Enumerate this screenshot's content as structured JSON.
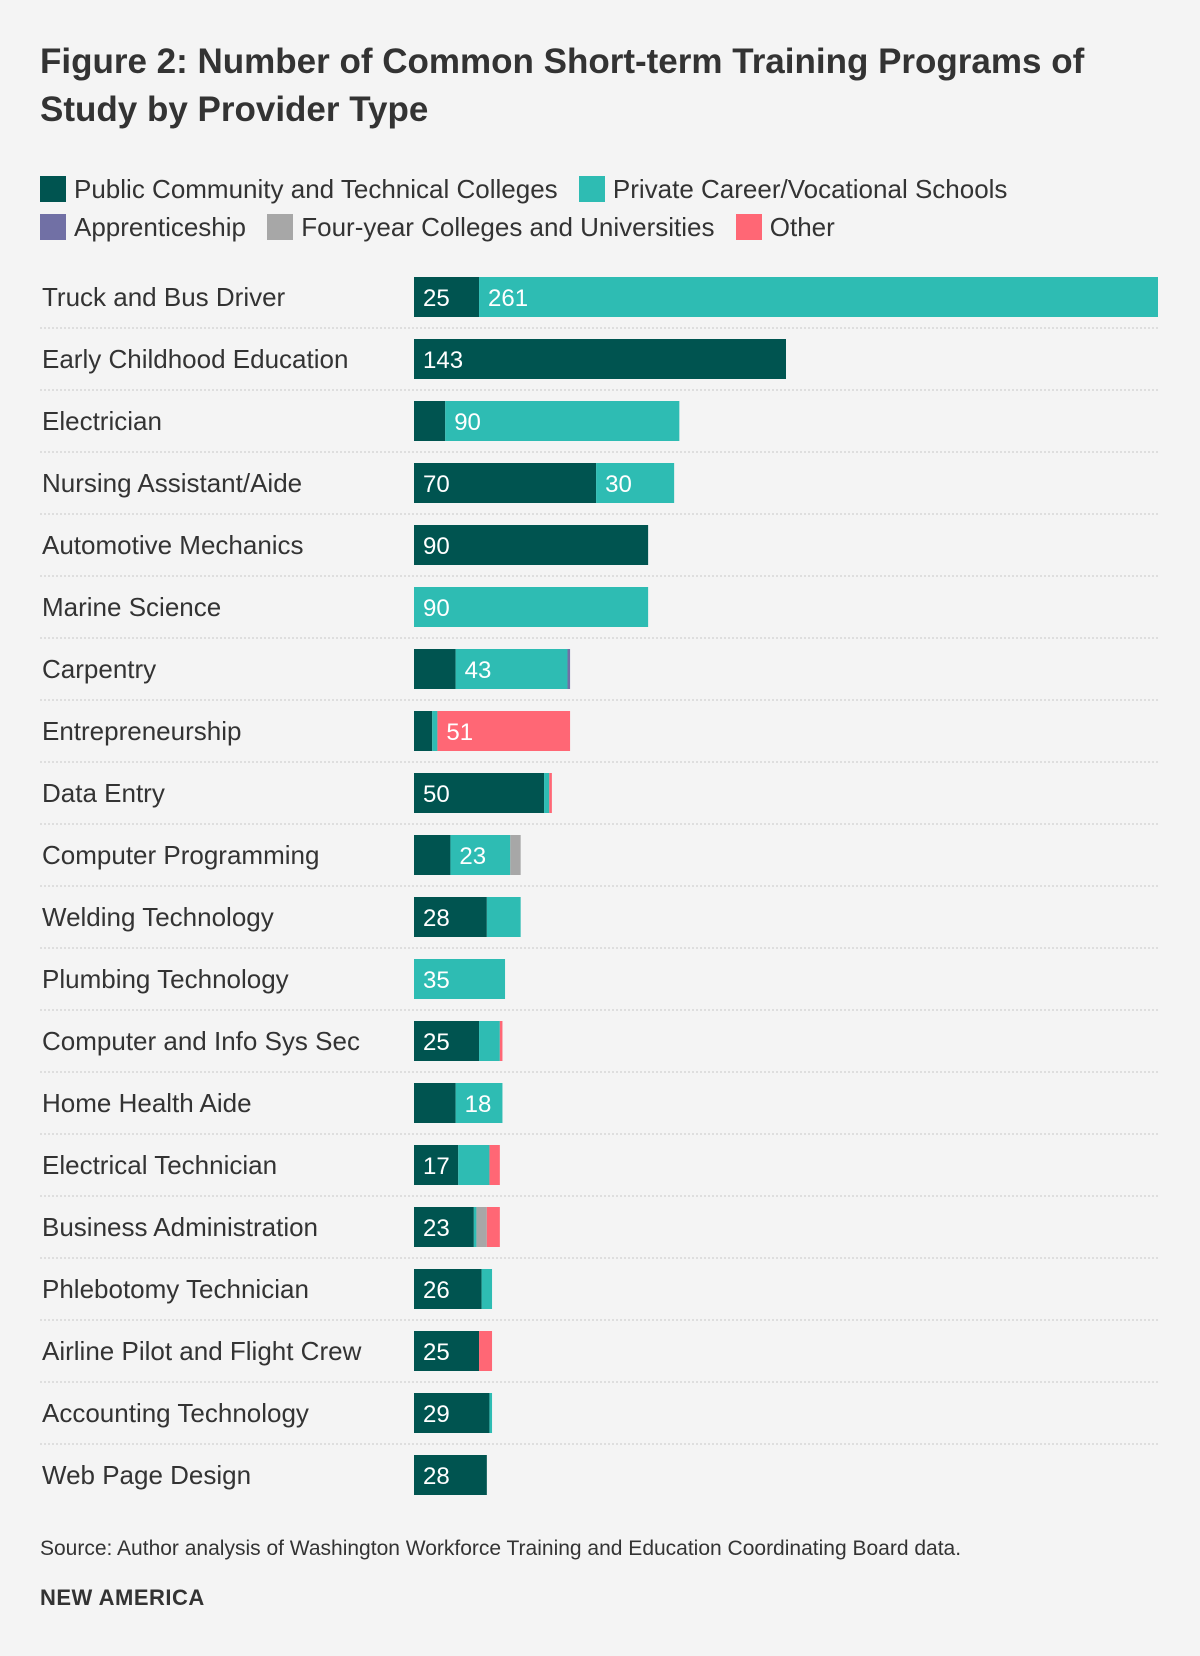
{
  "title": "Figure 2: Number of Common Short-term Training Programs of Study by Provider Type",
  "legend": [
    {
      "label": "Public Community and Technical Colleges",
      "color": "#005450"
    },
    {
      "label": "Private Career/Vocational Schools",
      "color": "#2ebcb3"
    },
    {
      "label": "Apprenticeship",
      "color": "#7170a5"
    },
    {
      "label": "Four-year Colleges and Universities",
      "color": "#a7a7a7"
    },
    {
      "label": "Other",
      "color": "#ff6775"
    }
  ],
  "chart_data": {
    "type": "bar",
    "orientation": "horizontal",
    "stacked": true,
    "categories": [
      "Truck and Bus Driver",
      "Early Childhood Education",
      "Electrician",
      "Nursing Assistant/Aide",
      "Automotive Mechanics",
      "Marine Science",
      "Carpentry",
      "Entrepreneurship",
      "Data Entry",
      "Computer Programming",
      "Welding Technology",
      "Plumbing Technology",
      "Computer and Info Sys Sec",
      "Home Health Aide",
      "Electrical Technician",
      "Business Administration",
      "Phlebotomy Technician",
      "Airline Pilot and Flight Crew",
      "Accounting Technology",
      "Web Page Design"
    ],
    "series": [
      {
        "name": "Public Community and Technical Colleges",
        "values": [
          25,
          143,
          12,
          70,
          90,
          0,
          16,
          7,
          50,
          14,
          28,
          0,
          25,
          16,
          17,
          23,
          26,
          25,
          29,
          28
        ],
        "labels": [
          "25",
          "143",
          "",
          "70",
          "90",
          "",
          "",
          "",
          "50",
          "",
          "28",
          "",
          "25",
          "",
          "17",
          "23",
          "26",
          "25",
          "29",
          "28"
        ]
      },
      {
        "name": "Private Career/Vocational Schools",
        "values": [
          261,
          0,
          90,
          30,
          0,
          90,
          43,
          2,
          2,
          23,
          13,
          35,
          8,
          18,
          12,
          1,
          4,
          0,
          1,
          0
        ],
        "labels": [
          "261",
          "",
          "90",
          "30",
          "",
          "90",
          "43",
          "",
          "",
          "23",
          "",
          "35",
          "",
          "18",
          "",
          "",
          "",
          "",
          "",
          ""
        ]
      },
      {
        "name": "Apprenticeship",
        "values": [
          0,
          0,
          0,
          0,
          0,
          0,
          1,
          0,
          0,
          0,
          0,
          0,
          0,
          0,
          0,
          0,
          0,
          0,
          0,
          0
        ],
        "labels": [
          "",
          "",
          "",
          "",
          "",
          "",
          "",
          "",
          "",
          "",
          "",
          "",
          "",
          "",
          "",
          "",
          "",
          "",
          "",
          ""
        ]
      },
      {
        "name": "Four-year Colleges and Universities",
        "values": [
          0,
          0,
          0,
          0,
          0,
          0,
          0,
          0,
          0,
          4,
          0,
          0,
          0,
          0,
          0,
          4,
          0,
          0,
          0,
          0
        ],
        "labels": [
          "",
          "",
          "",
          "",
          "",
          "",
          "",
          "",
          "",
          "",
          "",
          "",
          "",
          "",
          "",
          "",
          "",
          "",
          "",
          ""
        ]
      },
      {
        "name": "Other",
        "values": [
          0,
          0,
          0,
          0,
          0,
          0,
          0,
          51,
          1,
          0,
          0,
          0,
          1,
          0,
          4,
          5,
          0,
          5,
          0,
          0
        ],
        "labels": [
          "",
          "",
          "",
          "",
          "",
          "",
          "",
          "51",
          "",
          "",
          "",
          "",
          "",
          "",
          "",
          "",
          "",
          "",
          "",
          ""
        ]
      }
    ],
    "xlim": [
      0,
      286
    ],
    "grid": false,
    "legend_position": "top"
  },
  "footer": {
    "source": "Source: Author analysis of Washington Workforce Training and Education Coordinating Board data.",
    "brand": "NEW AMERICA"
  }
}
